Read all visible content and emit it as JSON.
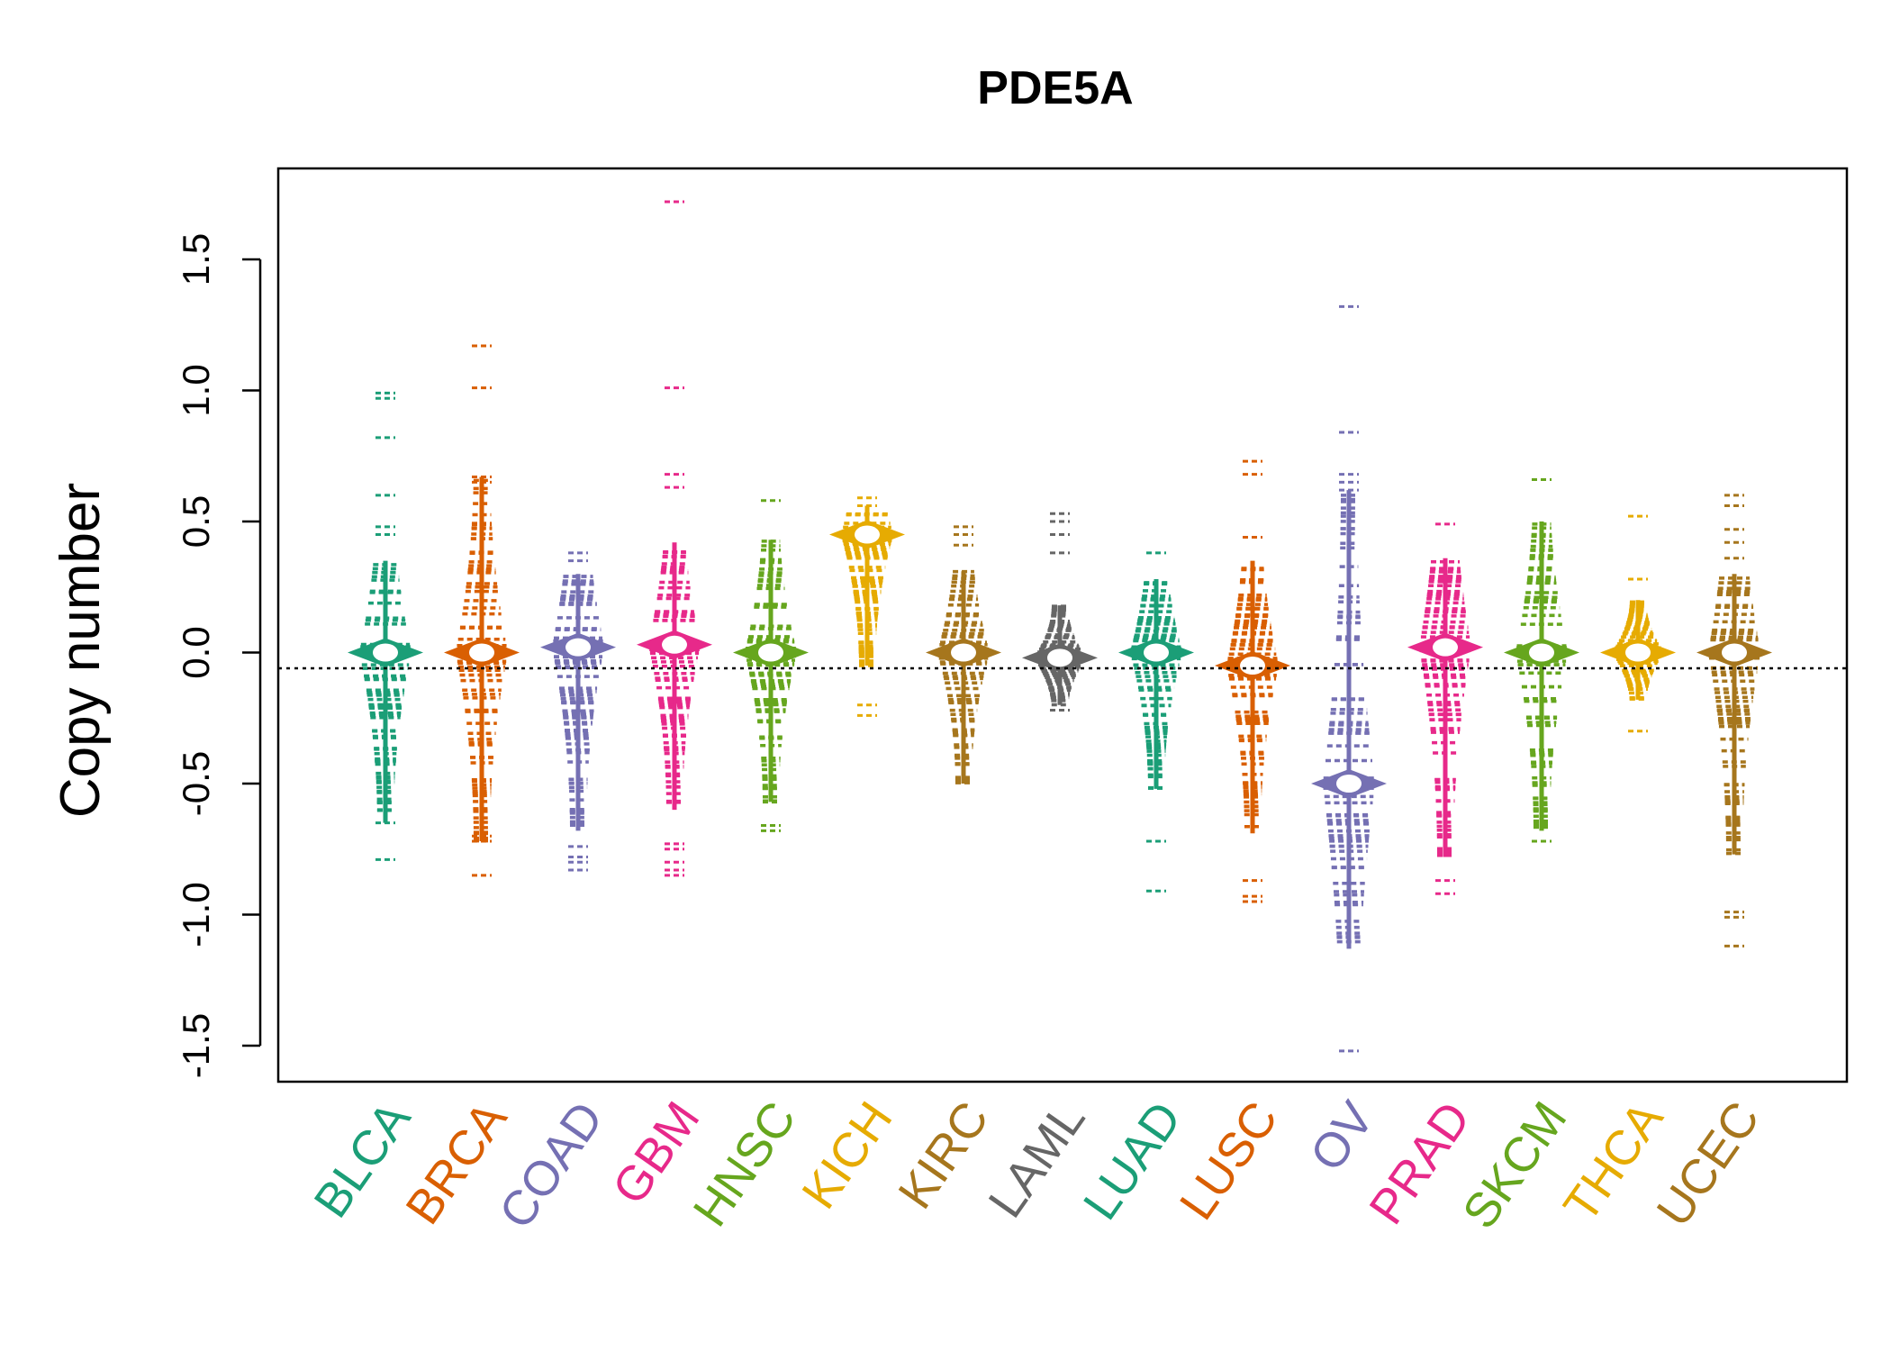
{
  "chart_data": {
    "type": "scatter",
    "title": "PDE5A",
    "ylabel": "Copy number",
    "xlabel": "",
    "ylim": [
      -1.65,
      1.85
    ],
    "yticks": [
      1.5,
      1.0,
      0.5,
      0.0,
      -0.5,
      -1.0,
      -1.5
    ],
    "ytick_labels": [
      "1.5",
      "1.0",
      "0.5",
      "0.0",
      "-0.5",
      "-1.0",
      "-1.5"
    ],
    "reference_line": -0.06,
    "grid": false,
    "legend": "none",
    "categories": [
      "BLCA",
      "BRCA",
      "COAD",
      "GBM",
      "HNSC",
      "KICH",
      "KIRC",
      "LAML",
      "LUAD",
      "LUSC",
      "OV",
      "PRAD",
      "SKCM",
      "THCA",
      "UCEC"
    ],
    "colors": [
      "#1b9e77",
      "#d95f02",
      "#7570b3",
      "#e7298a",
      "#66a61e",
      "#e6ab02",
      "#a6761d",
      "#666666",
      "#1b9e77",
      "#d95f02",
      "#7570b3",
      "#e7298a",
      "#66a61e",
      "#e6ab02",
      "#a6761d"
    ],
    "series": [
      {
        "category": "BLCA",
        "min": -0.79,
        "max": 0.99,
        "bulk_low": -0.65,
        "bulk_high": 0.35,
        "center": 0.0,
        "outliers": [
          0.99,
          0.97,
          0.82,
          0.6,
          0.48,
          0.45,
          -0.65,
          -0.79
        ]
      },
      {
        "category": "BRCA",
        "min": -0.85,
        "max": 1.17,
        "bulk_low": -0.72,
        "bulk_high": 0.67,
        "center": 0.0,
        "outliers": [
          1.17,
          1.01,
          0.67,
          0.65,
          -0.7,
          -0.72,
          -0.85
        ]
      },
      {
        "category": "COAD",
        "min": -0.83,
        "max": 0.38,
        "bulk_low": -0.68,
        "bulk_high": 0.3,
        "center": 0.02,
        "outliers": [
          0.38,
          0.35,
          -0.74,
          -0.78,
          -0.8,
          -0.83
        ]
      },
      {
        "category": "GBM",
        "min": -0.85,
        "max": 1.72,
        "bulk_low": -0.6,
        "bulk_high": 0.42,
        "center": 0.03,
        "outliers": [
          1.72,
          1.01,
          0.68,
          0.63,
          -0.73,
          -0.75,
          -0.8,
          -0.83,
          -0.85
        ]
      },
      {
        "category": "HNSC",
        "min": -0.68,
        "max": 0.58,
        "bulk_low": -0.57,
        "bulk_high": 0.43,
        "center": 0.0,
        "outliers": [
          0.58,
          -0.66,
          -0.68
        ]
      },
      {
        "category": "KICH",
        "min": -0.24,
        "max": 0.59,
        "bulk_low": -0.05,
        "bulk_high": 0.56,
        "center": 0.45,
        "outliers": [
          0.59,
          0.56,
          -0.2,
          -0.24
        ]
      },
      {
        "category": "KIRC",
        "min": -0.53,
        "max": 0.48,
        "bulk_low": -0.5,
        "bulk_high": 0.31,
        "center": 0.0,
        "outliers": [
          0.48,
          0.45,
          0.41
        ]
      },
      {
        "category": "LAML",
        "min": -0.22,
        "max": 0.53,
        "bulk_low": -0.2,
        "bulk_high": 0.18,
        "center": -0.02,
        "outliers": [
          0.53,
          0.5,
          0.45,
          0.38,
          -0.22
        ]
      },
      {
        "category": "LUAD",
        "min": -0.91,
        "max": 0.38,
        "bulk_low": -0.52,
        "bulk_high": 0.28,
        "center": 0.0,
        "outliers": [
          0.38,
          -0.72,
          -0.91
        ]
      },
      {
        "category": "LUSC",
        "min": -0.95,
        "max": 0.73,
        "bulk_low": -0.69,
        "bulk_high": 0.35,
        "center": -0.05,
        "outliers": [
          0.73,
          0.68,
          0.44,
          -0.87,
          -0.93,
          -0.95
        ]
      },
      {
        "category": "OV",
        "min": -1.52,
        "max": 1.32,
        "bulk_low": -1.13,
        "bulk_high": 0.62,
        "center": -0.5,
        "outliers": [
          1.32,
          0.84,
          0.68,
          0.65,
          0.62,
          -1.52
        ]
      },
      {
        "category": "PRAD",
        "min": -0.92,
        "max": 0.49,
        "bulk_low": -0.78,
        "bulk_high": 0.36,
        "center": 0.02,
        "outliers": [
          0.49,
          -0.87,
          -0.92
        ]
      },
      {
        "category": "SKCM",
        "min": -0.72,
        "max": 0.66,
        "bulk_low": -0.68,
        "bulk_high": 0.5,
        "center": 0.0,
        "outliers": [
          0.66,
          -0.72
        ]
      },
      {
        "category": "THCA",
        "min": -0.3,
        "max": 0.52,
        "bulk_low": -0.18,
        "bulk_high": 0.2,
        "center": 0.0,
        "outliers": [
          0.52,
          0.28,
          -0.3
        ]
      },
      {
        "category": "UCEC",
        "min": -1.12,
        "max": 0.6,
        "bulk_low": -0.77,
        "bulk_high": 0.3,
        "center": 0.0,
        "outliers": [
          0.6,
          0.56,
          0.47,
          0.42,
          0.36,
          -0.99,
          -1.01,
          -1.12
        ]
      }
    ]
  }
}
